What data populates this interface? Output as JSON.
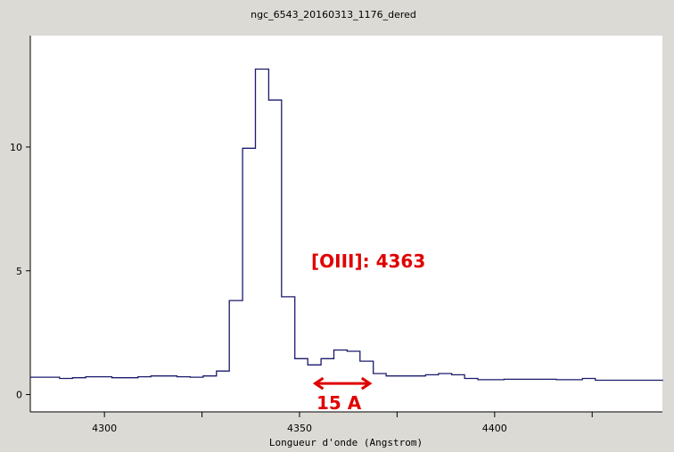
{
  "chart_data": {
    "type": "line",
    "title": "ngc_6543_20160313_1176_dered",
    "xlabel": "Longueur d'onde (Angstrom)",
    "ylabel": "",
    "xlim": [
      4281,
      4443
    ],
    "ylim": [
      -0.7,
      14.5
    ],
    "xticks": [
      4300,
      4350,
      4400
    ],
    "yticks": [
      0,
      5,
      10
    ],
    "grid": false,
    "legend": "none",
    "line_color": "#1a1a6e",
    "annotation_color": "#e00000",
    "series": [
      {
        "step": true,
        "x": [
          4281,
          4288.5,
          4291.8,
          4295.2,
          4298.5,
          4301.9,
          4305.2,
          4308.6,
          4311.9,
          4315.3,
          4318.6,
          4322.0,
          4325.3,
          4328.7,
          4332.0,
          4335.4,
          4338.7,
          4342.1,
          4345.4,
          4348.8,
          4352.1,
          4355.5,
          4358.8,
          4362.2,
          4365.5,
          4368.9,
          4372.2,
          4375.6,
          4378.9,
          4382.3,
          4385.6,
          4389.0,
          4392.3,
          4395.7,
          4399.0,
          4402.4,
          4405.7,
          4409.1,
          4412.4,
          4415.8,
          4419.1,
          4422.5,
          4425.8,
          4429.2,
          4432.5,
          4435.9,
          4439.2,
          4443
        ],
        "y": [
          0.7,
          0.65,
          0.68,
          0.72,
          0.72,
          0.68,
          0.68,
          0.72,
          0.75,
          0.75,
          0.72,
          0.7,
          0.75,
          0.95,
          3.8,
          9.95,
          13.15,
          11.9,
          3.95,
          1.45,
          1.2,
          1.45,
          1.8,
          1.75,
          1.35,
          0.85,
          0.75,
          0.75,
          0.75,
          0.8,
          0.85,
          0.8,
          0.65,
          0.6,
          0.6,
          0.62,
          0.62,
          0.62,
          0.62,
          0.6,
          0.6,
          0.65,
          0.58,
          0.58,
          0.58,
          0.58,
          0.58,
          0.55
        ]
      }
    ],
    "annotations": {
      "line_label": "[OIII]: 4363",
      "width_label": "15 A",
      "width_arrow": {
        "x_start": 4354,
        "x_end": 4368,
        "y": 0.45
      }
    }
  }
}
